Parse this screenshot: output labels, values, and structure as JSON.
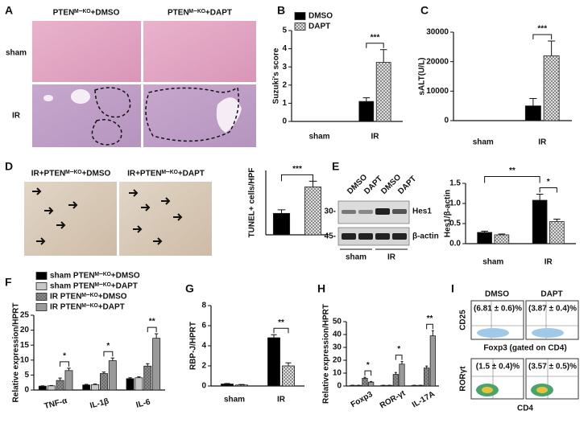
{
  "panels": {
    "letters": [
      "A",
      "B",
      "C",
      "D",
      "E",
      "F",
      "G",
      "H",
      "I"
    ]
  },
  "histology": {
    "columns": [
      "PTENᴹ⁻ᴷᴼ+DMSO",
      "PTENᴹ⁻ᴷᴼ+DAPT"
    ],
    "rows": [
      "sham",
      "IR"
    ]
  },
  "tunel_images": {
    "labels": [
      "IR+PTENᴹ⁻ᴷᴼ+DMSO",
      "IR+PTENᴹ⁻ᴷᴼ+DAPT"
    ]
  },
  "western_blot": {
    "lanes": [
      "DMSO",
      "DAPT",
      "DMSO",
      "DAPT"
    ],
    "markers": [
      "30-",
      "45-"
    ],
    "bands": [
      "Hes1",
      "β-actin"
    ],
    "groups": [
      "sham",
      "IR"
    ]
  },
  "flow_cytometry": {
    "columns": [
      "DMSO",
      "DAPT"
    ],
    "row_axes": [
      "CD25",
      "RORγt"
    ],
    "x_axes": [
      "Foxp3 (gated on CD4)",
      "CD4"
    ],
    "percentages": [
      [
        "(6.81 ± 0.6)%",
        "(3.87 ± 0.4)%"
      ],
      [
        "(1.5 ± 0.4)%",
        "(3.57 ± 0.5)%"
      ]
    ]
  },
  "chart_data": [
    {
      "type": "bar",
      "y_label": "Suzuki's score",
      "categories": [
        "sham",
        "IR"
      ],
      "series": [
        {
          "name": "DMSO",
          "color": "#000000",
          "hatch": false,
          "values": [
            0,
            1.1
          ],
          "errors": [
            0,
            0.2
          ]
        },
        {
          "name": "DAPT",
          "color": "#e0e0e0",
          "hatch": true,
          "values": [
            0,
            3.25
          ],
          "errors": [
            0,
            0.7
          ]
        }
      ],
      "significance": [
        null,
        "***"
      ],
      "ylim": [
        0,
        5
      ],
      "yticks": [
        0,
        1,
        2,
        3,
        4,
        5
      ],
      "legend": "upper left"
    },
    {
      "type": "bar",
      "y_label": "sALT(U/L)",
      "categories": [
        "sham",
        "IR"
      ],
      "series": [
        {
          "color": "#000000",
          "hatch": false,
          "values": [
            0,
            5000
          ],
          "errors": [
            0,
            2500
          ]
        },
        {
          "color": "#e0e0e0",
          "hatch": true,
          "values": [
            0,
            22000
          ],
          "errors": [
            0,
            5000
          ]
        }
      ],
      "significance": [
        null,
        "***"
      ],
      "ylim": [
        0,
        30000
      ],
      "yticks": [
        0,
        10000,
        20000,
        30000
      ]
    },
    {
      "type": "bar",
      "y_label": "TUNEL+ cells/HPF",
      "categories": [
        null,
        null
      ],
      "series": [
        {
          "colors": [
            "#000000",
            "#e0e0e0"
          ],
          "hatch_each": [
            false,
            true
          ],
          "values": [
            30,
            67
          ],
          "errors": [
            5,
            8
          ]
        }
      ],
      "annotations": [
        "***"
      ],
      "ylim": [
        0,
        90
      ]
    },
    {
      "type": "bar",
      "y_label": "Hes1/β-actin",
      "categories": [
        "sham",
        "IR"
      ],
      "series": [
        {
          "color": "#000000",
          "hatch": false,
          "values": [
            0.28,
            1.08
          ],
          "errors": [
            0.03,
            0.15
          ]
        },
        {
          "color": "#e0e0e0",
          "hatch": true,
          "values": [
            0.22,
            0.55
          ],
          "errors": [
            0.02,
            0.06
          ]
        }
      ],
      "significance": [
        null,
        "*"
      ],
      "annotations": [
        "**"
      ],
      "ylim": [
        0,
        1.5
      ],
      "yticks": [
        {
          "value": 0,
          "label": "0.0"
        },
        {
          "value": 0.5,
          "label": "0.5"
        },
        {
          "value": 1,
          "label": "1.0"
        },
        {
          "value": 1.5,
          "label": "1.5"
        }
      ]
    },
    {
      "type": "bar",
      "y_label": "Relative expression/HPRT",
      "categories": [
        "TNF-α",
        "IL-1β",
        "IL-6"
      ],
      "series": [
        {
          "name": "sham PTENᴹ⁻ᴷᴼ+DMSO",
          "color": "#000000",
          "hatch": false,
          "values": [
            1.3,
            1.7,
            3.8
          ],
          "errors": [
            0.1,
            0.2,
            0.3
          ]
        },
        {
          "name": "sham PTENᴹ⁻ᴷᴼ+DAPT",
          "color": "#c8c8c8",
          "hatch": false,
          "values": [
            1.4,
            1.8,
            4.1
          ],
          "errors": [
            0.1,
            0.2,
            0.3
          ]
        },
        {
          "name": "IR PTENᴹ⁻ᴷᴼ+DMSO",
          "color": "#6e6e6e",
          "hatch": true,
          "values": [
            3.2,
            5.5,
            8.0
          ],
          "errors": [
            0.8,
            0.5,
            0.8
          ]
        },
        {
          "name": "IR PTENᴹ⁻ᴷᴼ+DAPT",
          "color": "#9a9a9a",
          "hatch": false,
          "values": [
            6.5,
            9.8,
            17.3
          ],
          "errors": [
            0.8,
            0.9,
            1.5
          ]
        }
      ],
      "significance": [
        "*",
        "*",
        "**"
      ],
      "ylim": [
        0,
        25
      ],
      "yticks": [
        0,
        5,
        10,
        15,
        20,
        25
      ],
      "legend": "upper left"
    },
    {
      "type": "bar",
      "y_label": "RBP-J/HPRT",
      "categories": [
        "sham",
        "IR"
      ],
      "series": [
        {
          "color": "#000000",
          "hatch": false,
          "values": [
            0.2,
            4.8
          ],
          "errors": [
            0.05,
            0.3
          ]
        },
        {
          "color": "#e0e0e0",
          "hatch": true,
          "values": [
            0.1,
            2.0
          ],
          "errors": [
            0.05,
            0.3
          ]
        }
      ],
      "significance": [
        null,
        "**"
      ],
      "ylim": [
        0,
        8
      ],
      "yticks": [
        0,
        2,
        4,
        6,
        8
      ]
    },
    {
      "type": "bar",
      "y_label": "Relative expression/HPRT",
      "categories": [
        "Foxp3",
        "ROR-γt",
        "IL-17A"
      ],
      "series": [
        {
          "color": "#000000",
          "hatch": false,
          "values": [
            0.5,
            0.5,
            0.5
          ],
          "errors": [
            0.1,
            0.1,
            0.1
          ]
        },
        {
          "color": "#c8c8c8",
          "hatch": false,
          "values": [
            0.5,
            0.5,
            0.5
          ],
          "errors": [
            0.1,
            0.1,
            0.1
          ]
        },
        {
          "color": "#6e6e6e",
          "hatch": true,
          "values": [
            6,
            9,
            14
          ],
          "errors": [
            0.8,
            1.5,
            1.5
          ]
        },
        {
          "color": "#9a9a9a",
          "hatch": false,
          "values": [
            3,
            17,
            39
          ],
          "errors": [
            0.5,
            2,
            4
          ]
        }
      ],
      "significance": [
        "*",
        "*",
        "**"
      ],
      "ylim": [
        0,
        50
      ],
      "yticks": [
        0,
        10,
        20,
        30,
        40,
        50
      ]
    }
  ]
}
